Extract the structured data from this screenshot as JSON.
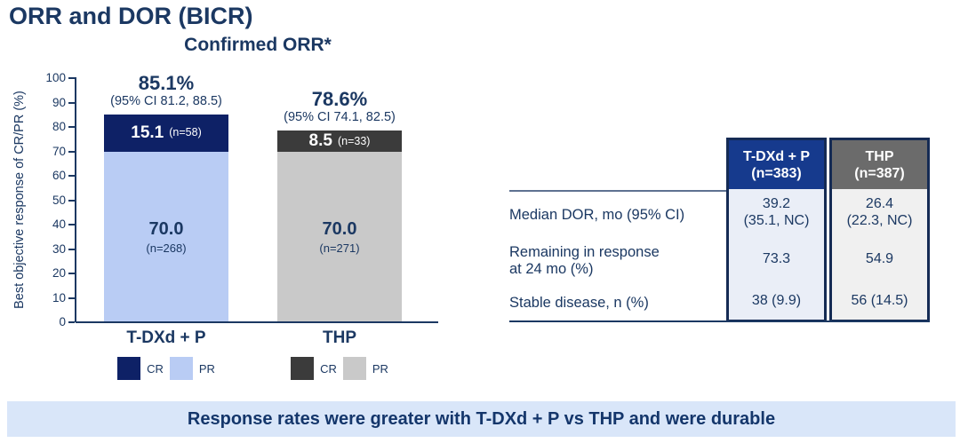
{
  "title": "ORR and DOR (BICR)",
  "chart": {
    "title": "Confirmed ORR*",
    "ylabel": "Best objective response of CR/PR (%)",
    "yticks": [
      0,
      10,
      20,
      30,
      40,
      50,
      60,
      70,
      80,
      90,
      100
    ],
    "groups": [
      {
        "label": "T-DXd + P",
        "headline": "85.1%",
        "ci": "(95% CI 81.2, 88.5)",
        "segments": {
          "cr": {
            "value": 15.1,
            "label": "15.1",
            "n": "(n=58)",
            "color": "#0E2166",
            "text_color": "#FFFFFF"
          },
          "pr": {
            "value": 70.0,
            "label": "70.0",
            "n": "(n=268)",
            "color": "#B9CCF4",
            "text_color": "#1B3862"
          }
        },
        "legend": [
          {
            "swatch": "#0E2166",
            "label": "CR"
          },
          {
            "swatch": "#B9CCF4",
            "label": "PR"
          }
        ]
      },
      {
        "label": "THP",
        "headline": "78.6%",
        "ci": "(95% CI 74.1, 82.5)",
        "segments": {
          "cr": {
            "value": 8.5,
            "label": "8.5",
            "n": "(n=33)",
            "color": "#3B3B3B",
            "text_color": "#FFFFFF"
          },
          "pr": {
            "value": 70.0,
            "label": "70.0",
            "n": "(n=271)",
            "color": "#C9C9C9",
            "text_color": "#1B3862"
          }
        },
        "legend": [
          {
            "swatch": "#3B3B3B",
            "label": "CR"
          },
          {
            "swatch": "#C9C9C9",
            "label": "PR"
          }
        ]
      }
    ]
  },
  "chart_data": {
    "type": "bar",
    "stacked": true,
    "title": "Confirmed ORR*",
    "ylabel": "Best objective response of CR/PR (%)",
    "ylim": [
      0,
      100
    ],
    "grid": false,
    "legend_position": "bottom",
    "categories": [
      "T-DXd + P",
      "THP"
    ],
    "series": [
      {
        "name": "PR",
        "values": [
          70.0,
          70.0
        ],
        "n": [
          268,
          271
        ],
        "colors": [
          "#B9CCF4",
          "#C9C9C9"
        ]
      },
      {
        "name": "CR",
        "values": [
          15.1,
          8.5
        ],
        "n": [
          58,
          33
        ],
        "colors": [
          "#0E2166",
          "#3B3B3B"
        ]
      }
    ],
    "totals": [
      {
        "orr": "85.1%",
        "ci": "(95% CI 81.2, 88.5)"
      },
      {
        "orr": "78.6%",
        "ci": "(95% CI 74.1, 82.5)"
      }
    ]
  },
  "table": {
    "columns": [
      {
        "header": "T-DXd + P",
        "n": "(n=383)",
        "header_bg": "#163A8D",
        "body_bg": "#EAEEF7"
      },
      {
        "header": "THP",
        "n": "(n=387)",
        "header_bg": "#6B6B6B",
        "body_bg": "#F0F0F0"
      }
    ],
    "rows": [
      {
        "label": "Median DOR, mo (95% CI)",
        "label2": "",
        "values": [
          [
            "39.2",
            "(35.1, NC)"
          ],
          [
            "26.4",
            "(22.3, NC)"
          ]
        ]
      },
      {
        "label": "Remaining in response",
        "label2": "at 24 mo (%)",
        "values": [
          [
            "73.3"
          ],
          [
            "54.9"
          ]
        ]
      },
      {
        "label": "Stable disease, n (%)",
        "label2": "",
        "values": [
          [
            "38 (9.9)"
          ],
          [
            "56 (14.5)"
          ]
        ]
      }
    ]
  },
  "banner": {
    "text": "Response rates were greater with T-DXd + P vs THP and were durable",
    "bg": "#D9E6F9",
    "text_color": "#14366B"
  }
}
